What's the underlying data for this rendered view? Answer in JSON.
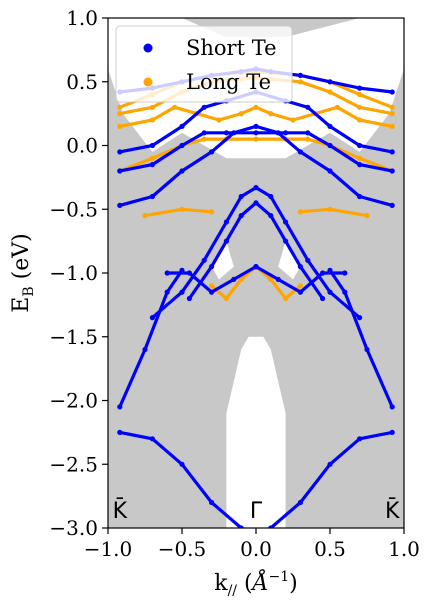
{
  "chart_data": {
    "type": "scatter",
    "title": "",
    "xlabel_main": "k",
    "xlabel_sub": "//",
    "xlabel_unit_open": " (",
    "xlabel_unit_base": "Å",
    "xlabel_unit_exp": "−1",
    "xlabel_unit_close": ")",
    "ylabel_main": "E",
    "ylabel_sub": "B",
    "ylabel_unit": " (eV)",
    "xlim": [
      -1.0,
      1.0
    ],
    "ylim": [
      -3.0,
      1.0
    ],
    "xticks": [
      -1.0,
      -0.5,
      0.0,
      0.5,
      1.0
    ],
    "xtick_labels": [
      "−1.0",
      "−0.5",
      "0.0",
      "0.5",
      "1.0"
    ],
    "yticks": [
      1.0,
      0.5,
      0.0,
      -0.5,
      -1.0,
      -1.5,
      -2.0,
      -2.5,
      -3.0
    ],
    "ytick_labels": [
      "1.0",
      "0.5",
      "0.0",
      "−0.5",
      "−1.0",
      "−1.5",
      "−2.0",
      "−2.5",
      "−3.0"
    ],
    "kpoint_labels": [
      {
        "text": "K̄",
        "x": -0.92
      },
      {
        "text": "Γ̄",
        "x": 0.0
      },
      {
        "text": "K̄",
        "x": 0.92
      }
    ],
    "legend_position": "top-left",
    "grid": false,
    "background_color": "#c8c8c8",
    "series": [
      {
        "name": "Short Te",
        "color": "#0000ff",
        "bands": [
          {
            "x": [
              -0.92,
              -0.7,
              -0.5,
              -0.3,
              -0.1,
              0,
              0.1,
              0.3,
              0.5,
              0.7,
              0.92
            ],
            "y": [
              0.42,
              0.45,
              0.5,
              0.55,
              0.58,
              0.6,
              0.58,
              0.55,
              0.5,
              0.45,
              0.42
            ]
          },
          {
            "x": [
              -0.92,
              -0.7,
              -0.5,
              -0.35,
              -0.2,
              0,
              0.2,
              0.35,
              0.5,
              0.7,
              0.92
            ],
            "y": [
              -0.05,
              0.0,
              0.15,
              0.3,
              0.35,
              0.42,
              0.35,
              0.3,
              0.15,
              0.0,
              -0.05
            ]
          },
          {
            "x": [
              -0.92,
              -0.7,
              -0.5,
              -0.35,
              -0.2,
              0,
              0.2,
              0.35,
              0.5,
              0.7,
              0.92
            ],
            "y": [
              -0.2,
              -0.15,
              0.0,
              0.1,
              0.1,
              0.1,
              0.1,
              0.1,
              0.0,
              -0.15,
              -0.2
            ]
          },
          {
            "x": [
              -0.92,
              -0.7,
              -0.5,
              -0.3,
              -0.15,
              0,
              0.15,
              0.3,
              0.5,
              0.7,
              0.92
            ],
            "y": [
              -0.47,
              -0.4,
              -0.2,
              -0.05,
              0.1,
              0.15,
              0.1,
              -0.05,
              -0.2,
              -0.4,
              -0.47
            ]
          },
          {
            "x": [
              -0.7,
              -0.5,
              -0.35,
              -0.2,
              -0.1,
              0,
              0.1,
              0.2,
              0.35,
              0.5,
              0.7
            ],
            "y": [
              -1.35,
              -1.15,
              -0.9,
              -0.6,
              -0.4,
              -0.33,
              -0.4,
              -0.6,
              -0.9,
              -1.15,
              -1.35
            ]
          },
          {
            "x": [
              -0.45,
              -0.3,
              -0.2,
              -0.1,
              0,
              0.1,
              0.2,
              0.3,
              0.45
            ],
            "y": [
              -1.2,
              -0.95,
              -0.75,
              -0.55,
              -0.45,
              -0.55,
              -0.75,
              -0.95,
              -1.2
            ]
          },
          {
            "x": [
              -0.92,
              -0.75,
              -0.6,
              -0.5
            ],
            "y": [
              -2.05,
              -1.6,
              -1.15,
              -0.98
            ]
          },
          {
            "x": [
              0.5,
              0.6,
              0.75,
              0.92
            ],
            "y": [
              -0.98,
              -1.15,
              -1.6,
              -2.05
            ]
          },
          {
            "x": [
              -0.6,
              -0.45,
              -0.3,
              -0.15,
              0
            ],
            "y": [
              -1.0,
              -1.0,
              -1.15,
              -1.05,
              -0.95
            ]
          },
          {
            "x": [
              0,
              0.15,
              0.3,
              0.45,
              0.6
            ],
            "y": [
              -0.95,
              -1.05,
              -1.15,
              -1.0,
              -1.0
            ]
          },
          {
            "x": [
              -0.92,
              -0.7,
              -0.5,
              -0.3,
              -0.1
            ],
            "y": [
              -2.25,
              -2.3,
              -2.5,
              -2.8,
              -3.0
            ]
          },
          {
            "x": [
              0.1,
              0.3,
              0.5,
              0.7,
              0.92
            ],
            "y": [
              -3.0,
              -2.8,
              -2.5,
              -2.3,
              -2.25
            ]
          }
        ]
      },
      {
        "name": "Long Te",
        "color": "#ffa500",
        "bands": [
          {
            "x": [
              -0.92,
              -0.7,
              -0.5,
              -0.3,
              -0.1,
              0,
              0.1,
              0.3,
              0.5,
              0.7,
              0.92
            ],
            "y": [
              0.3,
              0.4,
              0.5,
              0.55,
              0.57,
              0.58,
              0.57,
              0.55,
              0.5,
              0.4,
              0.3
            ]
          },
          {
            "x": [
              -0.92,
              -0.7,
              -0.5,
              -0.3,
              -0.1,
              0,
              0.1,
              0.3,
              0.5,
              0.7,
              0.92
            ],
            "y": [
              0.25,
              0.3,
              0.42,
              0.5,
              0.52,
              0.53,
              0.52,
              0.5,
              0.42,
              0.3,
              0.25
            ]
          },
          {
            "x": [
              -0.92,
              -0.7,
              -0.55,
              -0.4,
              -0.25,
              -0.1,
              0,
              0.1,
              0.25,
              0.4,
              0.55,
              0.7,
              0.92
            ],
            "y": [
              0.15,
              0.2,
              0.3,
              0.25,
              0.2,
              0.25,
              0.3,
              0.25,
              0.2,
              0.25,
              0.3,
              0.2,
              0.15
            ]
          },
          {
            "x": [
              -0.92,
              -0.7,
              -0.5,
              -0.35,
              -0.2,
              0,
              0.2,
              0.35,
              0.5,
              0.7,
              0.92
            ],
            "y": [
              -0.2,
              -0.1,
              0.0,
              0.05,
              0.05,
              0.05,
              0.05,
              0.05,
              0.0,
              -0.1,
              -0.2
            ]
          },
          {
            "x": [
              -0.3,
              -0.2,
              -0.1,
              0,
              0.1,
              0.2,
              0.3
            ],
            "y": [
              -1.1,
              -1.2,
              -1.05,
              -0.95,
              -1.05,
              -1.2,
              -1.1
            ]
          },
          {
            "x": [
              -0.75,
              -0.5,
              -0.3
            ],
            "y": [
              -0.55,
              -0.5,
              -0.52
            ]
          },
          {
            "x": [
              0.3,
              0.5,
              0.75
            ],
            "y": [
              -0.52,
              -0.5,
              -0.55
            ]
          }
        ]
      }
    ],
    "bulk_projection": {
      "name": "",
      "color": "#c8c8c8",
      "region": [
        [
          -1.0,
          0.6
        ],
        [
          -0.9,
          0.25
        ],
        [
          -0.7,
          -0.05
        ],
        [
          -0.5,
          0.1
        ],
        [
          -0.35,
          0.0
        ],
        [
          -0.2,
          -0.1
        ],
        [
          0,
          -0.1
        ],
        [
          0.2,
          -0.1
        ],
        [
          0.35,
          0.0
        ],
        [
          0.5,
          0.1
        ],
        [
          0.7,
          -0.05
        ],
        [
          0.9,
          0.25
        ],
        [
          1.0,
          0.6
        ],
        [
          1.0,
          -3.0
        ],
        [
          0.2,
          -3.0
        ],
        [
          0.2,
          -2.1
        ],
        [
          0.1,
          -1.6
        ],
        [
          0.05,
          -1.5
        ],
        [
          -0.05,
          -1.5
        ],
        [
          -0.1,
          -1.6
        ],
        [
          -0.2,
          -2.1
        ],
        [
          -0.2,
          -3.0
        ],
        [
          -1.0,
          -3.0
        ]
      ],
      "top_region": [
        [
          -0.5,
          1.0
        ],
        [
          -0.2,
          0.85
        ],
        [
          0,
          0.85
        ],
        [
          0.2,
          0.85
        ],
        [
          0.7,
          1.0
        ]
      ],
      "gaps": [
        [
          [
            -0.2,
            -0.75
          ],
          [
            -0.3,
            -0.95
          ],
          [
            -0.25,
            -1.05
          ],
          [
            -0.15,
            -0.95
          ]
        ],
        [
          [
            0.2,
            -0.75
          ],
          [
            0.3,
            -0.95
          ],
          [
            0.25,
            -1.05
          ],
          [
            0.15,
            -0.95
          ]
        ]
      ]
    }
  }
}
